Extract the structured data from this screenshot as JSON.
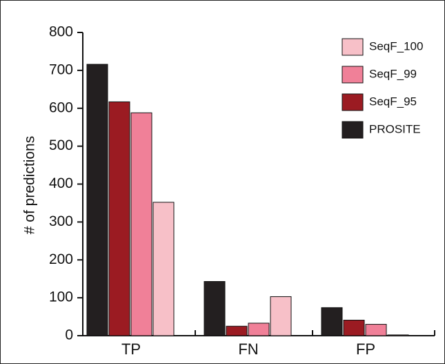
{
  "chart_data": {
    "type": "bar",
    "y_label": "# of predictions",
    "categories": [
      "TP",
      "FN",
      "FP"
    ],
    "series": [
      {
        "name": "PROSITE",
        "color": "#231f20",
        "values": [
          716,
          143,
          74
        ]
      },
      {
        "name": "SeqF_95",
        "color": "#9b1b22",
        "values": [
          617,
          25,
          41
        ]
      },
      {
        "name": "SeqF_99",
        "color": "#f08098",
        "values": [
          588,
          33,
          30
        ]
      },
      {
        "name": "SeqF_100",
        "color": "#f7c0c8",
        "values": [
          352,
          103,
          2
        ]
      }
    ],
    "ylim": [
      0,
      800
    ],
    "yticks": [
      0,
      100,
      200,
      300,
      400,
      500,
      600,
      700,
      800
    ],
    "legend": "top-right"
  }
}
